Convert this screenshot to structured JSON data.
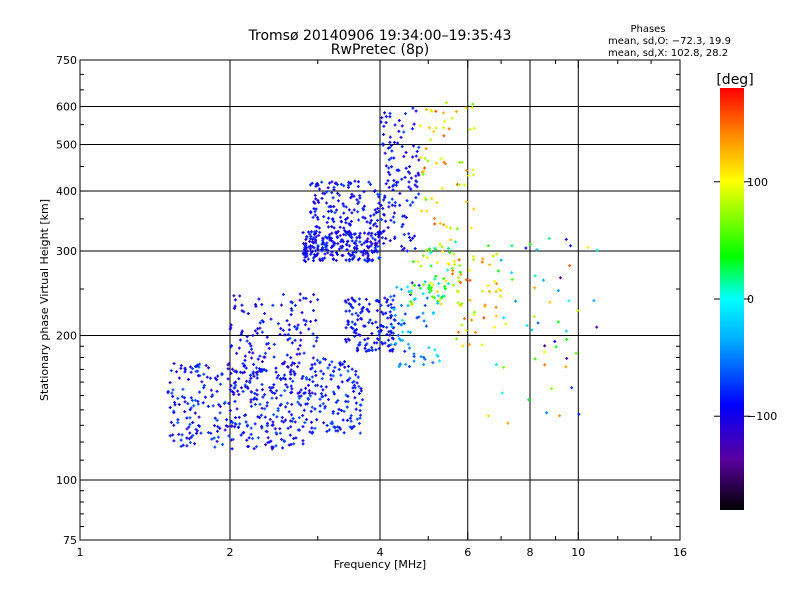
{
  "chart_data": {
    "type": "scatter",
    "title": "Tromsø 20140906 19:34:00–19:35:43",
    "subtitle": "RwPretec (8p)",
    "xlabel": "Frequency [MHz]",
    "ylabel": "Stationary phase Virtual Height [km]",
    "x_scale": "log",
    "y_scale": "log",
    "xlim": [
      1,
      16
    ],
    "ylim": [
      75,
      750
    ],
    "x_ticks": [
      1,
      2,
      4,
      6,
      8,
      10,
      16
    ],
    "y_ticks": [
      75,
      100,
      200,
      300,
      400,
      500,
      600,
      750
    ],
    "x_gridlines": [
      2,
      4,
      6,
      8,
      10
    ],
    "y_gridlines": [
      100,
      200,
      300,
      400,
      500,
      600
    ],
    "grid": true,
    "info_box": {
      "heading": "Phases",
      "line1": "mean, sd,O: −72.3, 19.9",
      "line2": "mean, sd,X: 102.8, 28.2"
    },
    "colorbar": {
      "label": "[deg]",
      "min": -180,
      "max": 180,
      "ticks": [
        100,
        0,
        -100
      ]
    },
    "clusters": [
      {
        "f": [
          1.5,
          2.9
        ],
        "h": [
          116,
          175
        ],
        "phase": [
          -120,
          -60
        ],
        "n": 330
      },
      {
        "f": [
          2.0,
          3.0
        ],
        "h": [
          150,
          245
        ],
        "phase": [
          -120,
          -70
        ],
        "n": 180
      },
      {
        "f": [
          2.9,
          3.7
        ],
        "h": [
          125,
          180
        ],
        "phase": [
          -100,
          -60
        ],
        "n": 130
      },
      {
        "f": [
          2.8,
          4.0
        ],
        "h": [
          285,
          330
        ],
        "phase": [
          -120,
          -70
        ],
        "n": 230
      },
      {
        "f": [
          2.9,
          4.0
        ],
        "h": [
          320,
          420
        ],
        "phase": [
          -110,
          -70
        ],
        "n": 150
      },
      {
        "f": [
          3.4,
          4.3
        ],
        "h": [
          185,
          240
        ],
        "phase": [
          -110,
          -70
        ],
        "n": 140
      },
      {
        "f": [
          4.0,
          4.8
        ],
        "h": [
          300,
          600
        ],
        "phase": [
          -110,
          -70
        ],
        "n": 130
      },
      {
        "f": [
          4.2,
          5.3
        ],
        "h": [
          170,
          260
        ],
        "phase": [
          -80,
          0
        ],
        "n": 70
      },
      {
        "f": [
          4.6,
          5.8
        ],
        "h": [
          230,
          320
        ],
        "phase": [
          0,
          120
        ],
        "n": 60
      },
      {
        "f": [
          4.8,
          6.2
        ],
        "h": [
          330,
          620
        ],
        "phase": [
          60,
          160
        ],
        "n": 60
      },
      {
        "f": [
          5.5,
          7.2
        ],
        "h": [
          190,
          300
        ],
        "phase": [
          60,
          160
        ],
        "n": 55
      },
      {
        "f": [
          6.5,
          11.0
        ],
        "h": [
          130,
          320
        ],
        "phase": [
          -150,
          150
        ],
        "n": 55
      }
    ]
  }
}
